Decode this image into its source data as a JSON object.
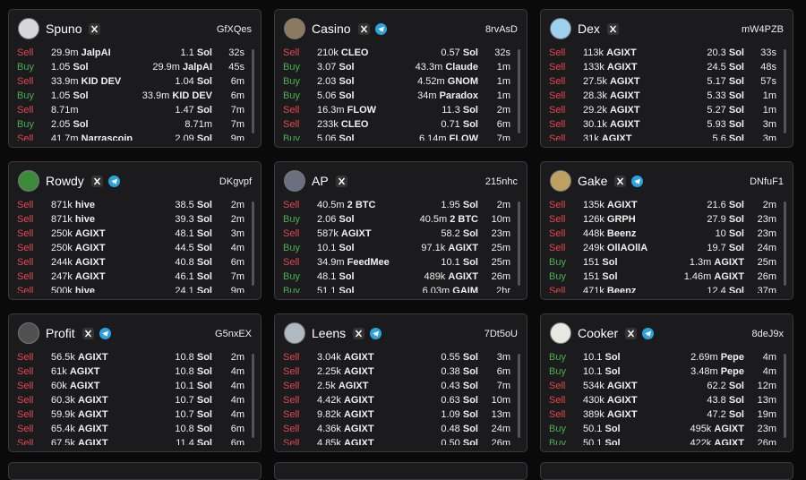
{
  "cards": [
    {
      "name": "Spuno",
      "code": "GfXQes",
      "avatar_color": "#d8d8d8",
      "telegram": false,
      "rows": [
        {
          "side": "Sell",
          "side_color": "#e5484d",
          "in_amt": "29.9m",
          "in_tok": "JalpAI",
          "out_amt": "1.1",
          "out_tok": "Sol",
          "time": "32s"
        },
        {
          "side": "Buy",
          "side_color": "#4caf50",
          "in_amt": "1.05",
          "in_tok": "Sol",
          "out_amt": "29.9m",
          "out_tok": "JalpAI",
          "time": "45s"
        },
        {
          "side": "Sell",
          "side_color": "#e5484d",
          "in_amt": "33.9m",
          "in_tok": "KID DEV",
          "out_amt": "1.04",
          "out_tok": "Sol",
          "time": "6m"
        },
        {
          "side": "Buy",
          "side_color": "#4caf50",
          "in_amt": "1.05",
          "in_tok": "Sol",
          "out_amt": "33.9m",
          "out_tok": "KID DEV",
          "time": "6m"
        },
        {
          "side": "Sell",
          "side_color": "#e5484d",
          "in_amt": "8.71m",
          "out_amt": "1.47",
          "out_tok": "Sol",
          "time": "7m"
        },
        {
          "side": "Buy",
          "side_color": "#4caf50",
          "in_amt": "2.05",
          "in_tok": "Sol",
          "out_amt": "8.71m",
          "time": "7m"
        },
        {
          "side": "Sell",
          "side_color": "#e5484d",
          "in_amt": "41.7m",
          "in_tok": "Narrascoin",
          "out_amt": "2.09",
          "out_tok": "Sol",
          "time": "9m"
        }
      ]
    },
    {
      "name": "Casino",
      "code": "8rvAsD",
      "avatar_color": "#8a7a60",
      "telegram": true,
      "rows": [
        {
          "side": "Sell",
          "side_color": "#e5484d",
          "in_amt": "210k",
          "in_tok": "CLEO",
          "out_amt": "0.57",
          "out_tok": "Sol",
          "time": "32s"
        },
        {
          "side": "Buy",
          "side_color": "#4caf50",
          "in_amt": "3.07",
          "in_tok": "Sol",
          "out_amt": "43.3m",
          "out_tok": "Claude",
          "time": "1m"
        },
        {
          "side": "Buy",
          "side_color": "#4caf50",
          "in_amt": "2.03",
          "in_tok": "Sol",
          "out_amt": "4.52m",
          "out_tok": "GNOM",
          "time": "1m"
        },
        {
          "side": "Buy",
          "side_color": "#4caf50",
          "in_amt": "5.06",
          "in_tok": "Sol",
          "out_amt": "34m",
          "out_tok": "Paradox",
          "time": "1m"
        },
        {
          "side": "Sell",
          "side_color": "#e5484d",
          "in_amt": "16.3m",
          "in_tok": "FLOW",
          "out_amt": "11.3",
          "out_tok": "Sol",
          "time": "2m"
        },
        {
          "side": "Sell",
          "side_color": "#e5484d",
          "in_amt": "233k",
          "in_tok": "CLEO",
          "out_amt": "0.71",
          "out_tok": "Sol",
          "time": "6m"
        },
        {
          "side": "Buy",
          "side_color": "#4caf50",
          "in_amt": "5.06",
          "in_tok": "Sol",
          "out_amt": "6.14m",
          "out_tok": "FLOW",
          "time": "7m"
        }
      ]
    },
    {
      "name": "Dex",
      "code": "mW4PZB",
      "avatar_color": "#9fd0f0",
      "telegram": false,
      "rows": [
        {
          "side": "Sell",
          "side_color": "#e5484d",
          "in_amt": "113k",
          "in_tok": "AGIXT",
          "out_amt": "20.3",
          "out_tok": "Sol",
          "time": "33s"
        },
        {
          "side": "Sell",
          "side_color": "#e5484d",
          "in_amt": "133k",
          "in_tok": "AGIXT",
          "out_amt": "24.5",
          "out_tok": "Sol",
          "time": "48s"
        },
        {
          "side": "Sell",
          "side_color": "#e5484d",
          "in_amt": "27.5k",
          "in_tok": "AGIXT",
          "out_amt": "5.17",
          "out_tok": "Sol",
          "time": "57s"
        },
        {
          "side": "Sell",
          "side_color": "#e5484d",
          "in_amt": "28.3k",
          "in_tok": "AGIXT",
          "out_amt": "5.33",
          "out_tok": "Sol",
          "time": "1m"
        },
        {
          "side": "Sell",
          "side_color": "#e5484d",
          "in_amt": "29.2k",
          "in_tok": "AGIXT",
          "out_amt": "5.27",
          "out_tok": "Sol",
          "time": "1m"
        },
        {
          "side": "Sell",
          "side_color": "#e5484d",
          "in_amt": "30.1k",
          "in_tok": "AGIXT",
          "out_amt": "5.93",
          "out_tok": "Sol",
          "time": "3m"
        },
        {
          "side": "Sell",
          "side_color": "#e5484d",
          "in_amt": "31k",
          "in_tok": "AGIXT",
          "out_amt": "5.6",
          "out_tok": "Sol",
          "time": "3m"
        }
      ]
    },
    {
      "name": "Rowdy",
      "code": "DKgvpf",
      "avatar_color": "#3a8a3a",
      "telegram": true,
      "rows": [
        {
          "side": "Sell",
          "side_color": "#e5484d",
          "in_amt": "871k",
          "in_tok": "hive",
          "out_amt": "38.5",
          "out_tok": "Sol",
          "time": "2m"
        },
        {
          "side": "Sell",
          "side_color": "#e5484d",
          "in_amt": "871k",
          "in_tok": "hive",
          "out_amt": "39.3",
          "out_tok": "Sol",
          "time": "2m"
        },
        {
          "side": "Sell",
          "side_color": "#e5484d",
          "in_amt": "250k",
          "in_tok": "AGIXT",
          "out_amt": "48.1",
          "out_tok": "Sol",
          "time": "3m"
        },
        {
          "side": "Sell",
          "side_color": "#e5484d",
          "in_amt": "250k",
          "in_tok": "AGIXT",
          "out_amt": "44.5",
          "out_tok": "Sol",
          "time": "4m"
        },
        {
          "side": "Sell",
          "side_color": "#e5484d",
          "in_amt": "244k",
          "in_tok": "AGIXT",
          "out_amt": "40.8",
          "out_tok": "Sol",
          "time": "6m"
        },
        {
          "side": "Sell",
          "side_color": "#e5484d",
          "in_amt": "247k",
          "in_tok": "AGIXT",
          "out_amt": "46.1",
          "out_tok": "Sol",
          "time": "7m"
        },
        {
          "side": "Sell",
          "side_color": "#e5484d",
          "in_amt": "500k",
          "in_tok": "hive",
          "out_amt": "24.1",
          "out_tok": "Sol",
          "time": "9m"
        }
      ]
    },
    {
      "name": "AP",
      "code": "215nhc",
      "avatar_color": "#6a7080",
      "telegram": false,
      "rows": [
        {
          "side": "Sell",
          "side_color": "#e5484d",
          "in_amt": "40.5m",
          "in_tok": "2 BTC",
          "out_amt": "1.95",
          "out_tok": "Sol",
          "time": "2m"
        },
        {
          "side": "Buy",
          "side_color": "#4caf50",
          "in_amt": "2.06",
          "in_tok": "Sol",
          "out_amt": "40.5m",
          "out_tok": "2 BTC",
          "time": "10m"
        },
        {
          "side": "Sell",
          "side_color": "#e5484d",
          "in_amt": "587k",
          "in_tok": "AGIXT",
          "out_amt": "58.2",
          "out_tok": "Sol",
          "time": "23m"
        },
        {
          "side": "Buy",
          "side_color": "#4caf50",
          "in_amt": "10.1",
          "in_tok": "Sol",
          "out_amt": "97.1k",
          "out_tok": "AGIXT",
          "time": "25m"
        },
        {
          "side": "Sell",
          "side_color": "#e5484d",
          "in_amt": "34.9m",
          "in_tok": "FeedMee",
          "out_amt": "10.1",
          "out_tok": "Sol",
          "time": "25m"
        },
        {
          "side": "Buy",
          "side_color": "#4caf50",
          "in_amt": "48.1",
          "in_tok": "Sol",
          "out_amt": "489k",
          "out_tok": "AGIXT",
          "time": "26m"
        },
        {
          "side": "Buy",
          "side_color": "#4caf50",
          "in_amt": "51.1",
          "in_tok": "Sol",
          "out_amt": "6.03m",
          "out_tok": "GAIM",
          "time": "2hr"
        }
      ]
    },
    {
      "name": "Gake",
      "code": "DNfuF1",
      "avatar_color": "#c0a060",
      "telegram": true,
      "rows": [
        {
          "side": "Sell",
          "side_color": "#e5484d",
          "in_amt": "135k",
          "in_tok": "AGIXT",
          "out_amt": "21.6",
          "out_tok": "Sol",
          "time": "2m"
        },
        {
          "side": "Sell",
          "side_color": "#e5484d",
          "in_amt": "126k",
          "in_tok": "GRPH",
          "out_amt": "27.9",
          "out_tok": "Sol",
          "time": "23m"
        },
        {
          "side": "Sell",
          "side_color": "#e5484d",
          "in_amt": "448k",
          "in_tok": "Beenz",
          "out_amt": "10",
          "out_tok": "Sol",
          "time": "23m"
        },
        {
          "side": "Sell",
          "side_color": "#e5484d",
          "in_amt": "249k",
          "in_tok": "OllAOllA",
          "out_amt": "19.7",
          "out_tok": "Sol",
          "time": "24m"
        },
        {
          "side": "Buy",
          "side_color": "#4caf50",
          "in_amt": "151",
          "in_tok": "Sol",
          "out_amt": "1.3m",
          "out_tok": "AGIXT",
          "time": "25m"
        },
        {
          "side": "Buy",
          "side_color": "#4caf50",
          "in_amt": "151",
          "in_tok": "Sol",
          "out_amt": "1.46m",
          "out_tok": "AGIXT",
          "time": "26m"
        },
        {
          "side": "Sell",
          "side_color": "#e5484d",
          "in_amt": "471k",
          "in_tok": "Beenz",
          "out_amt": "12.4",
          "out_tok": "Sol",
          "time": "37m"
        }
      ]
    },
    {
      "name": "Profit",
      "code": "G5nxEX",
      "avatar_color": "#505050",
      "telegram": true,
      "rows": [
        {
          "side": "Sell",
          "side_color": "#e5484d",
          "in_amt": "56.5k",
          "in_tok": "AGIXT",
          "out_amt": "10.8",
          "out_tok": "Sol",
          "time": "2m"
        },
        {
          "side": "Sell",
          "side_color": "#e5484d",
          "in_amt": "61k",
          "in_tok": "AGIXT",
          "out_amt": "10.8",
          "out_tok": "Sol",
          "time": "4m"
        },
        {
          "side": "Sell",
          "side_color": "#e5484d",
          "in_amt": "60k",
          "in_tok": "AGIXT",
          "out_amt": "10.1",
          "out_tok": "Sol",
          "time": "4m"
        },
        {
          "side": "Sell",
          "side_color": "#e5484d",
          "in_amt": "60.3k",
          "in_tok": "AGIXT",
          "out_amt": "10.7",
          "out_tok": "Sol",
          "time": "4m"
        },
        {
          "side": "Sell",
          "side_color": "#e5484d",
          "in_amt": "59.9k",
          "in_tok": "AGIXT",
          "out_amt": "10.7",
          "out_tok": "Sol",
          "time": "4m"
        },
        {
          "side": "Sell",
          "side_color": "#e5484d",
          "in_amt": "65.4k",
          "in_tok": "AGIXT",
          "out_amt": "10.8",
          "out_tok": "Sol",
          "time": "6m"
        },
        {
          "side": "Sell",
          "side_color": "#e5484d",
          "in_amt": "67.5k",
          "in_tok": "AGIXT",
          "out_amt": "11.4",
          "out_tok": "Sol",
          "time": "6m"
        }
      ]
    },
    {
      "name": "Leens",
      "code": "7Dt5oU",
      "avatar_color": "#b0b8c0",
      "telegram": true,
      "rows": [
        {
          "side": "Sell",
          "side_color": "#e5484d",
          "in_amt": "3.04k",
          "in_tok": "AGIXT",
          "out_amt": "0.55",
          "out_tok": "Sol",
          "time": "3m"
        },
        {
          "side": "Sell",
          "side_color": "#e5484d",
          "in_amt": "2.25k",
          "in_tok": "AGIXT",
          "out_amt": "0.38",
          "out_tok": "Sol",
          "time": "6m"
        },
        {
          "side": "Sell",
          "side_color": "#e5484d",
          "in_amt": "2.5k",
          "in_tok": "AGIXT",
          "out_amt": "0.43",
          "out_tok": "Sol",
          "time": "7m"
        },
        {
          "side": "Sell",
          "side_color": "#e5484d",
          "in_amt": "4.42k",
          "in_tok": "AGIXT",
          "out_amt": "0.63",
          "out_tok": "Sol",
          "time": "10m"
        },
        {
          "side": "Sell",
          "side_color": "#e5484d",
          "in_amt": "9.82k",
          "in_tok": "AGIXT",
          "out_amt": "1.09",
          "out_tok": "Sol",
          "time": "13m"
        },
        {
          "side": "Sell",
          "side_color": "#e5484d",
          "in_amt": "4.36k",
          "in_tok": "AGIXT",
          "out_amt": "0.48",
          "out_tok": "Sol",
          "time": "24m"
        },
        {
          "side": "Sell",
          "side_color": "#e5484d",
          "in_amt": "4.85k",
          "in_tok": "AGIXT",
          "out_amt": "0.50",
          "out_tok": "Sol",
          "time": "26m"
        }
      ]
    },
    {
      "name": "Cooker",
      "code": "8deJ9x",
      "avatar_color": "#e8e8e0",
      "telegram": true,
      "rows": [
        {
          "side": "Buy",
          "side_color": "#4caf50",
          "in_amt": "10.1",
          "in_tok": "Sol",
          "out_amt": "2.69m",
          "out_tok": "Pepe",
          "time": "4m"
        },
        {
          "side": "Buy",
          "side_color": "#4caf50",
          "in_amt": "10.1",
          "in_tok": "Sol",
          "out_amt": "3.48m",
          "out_tok": "Pepe",
          "time": "4m"
        },
        {
          "side": "Sell",
          "side_color": "#e5484d",
          "in_amt": "534k",
          "in_tok": "AGIXT",
          "out_amt": "62.2",
          "out_tok": "Sol",
          "time": "12m"
        },
        {
          "side": "Sell",
          "side_color": "#e5484d",
          "in_amt": "430k",
          "in_tok": "AGIXT",
          "out_amt": "43.8",
          "out_tok": "Sol",
          "time": "13m"
        },
        {
          "side": "Sell",
          "side_color": "#e5484d",
          "in_amt": "389k",
          "in_tok": "AGIXT",
          "out_amt": "47.2",
          "out_tok": "Sol",
          "time": "19m"
        },
        {
          "side": "Buy",
          "side_color": "#4caf50",
          "in_amt": "50.1",
          "in_tok": "Sol",
          "out_amt": "495k",
          "out_tok": "AGIXT",
          "time": "23m"
        },
        {
          "side": "Buy",
          "side_color": "#4caf50",
          "in_amt": "50.1",
          "in_tok": "Sol",
          "out_amt": "422k",
          "out_tok": "AGIXT",
          "time": "26m"
        }
      ]
    }
  ]
}
